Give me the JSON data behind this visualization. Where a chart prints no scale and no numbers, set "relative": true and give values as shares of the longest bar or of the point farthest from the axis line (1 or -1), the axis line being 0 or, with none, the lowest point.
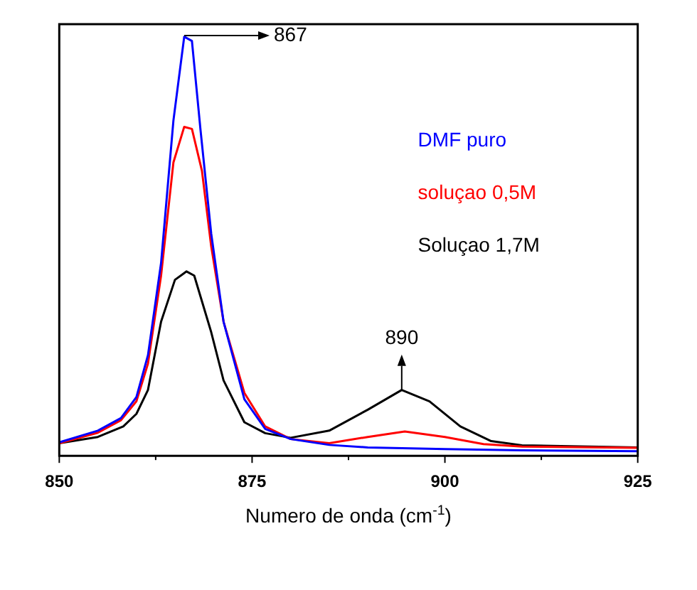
{
  "chart_data": {
    "type": "line",
    "relative": true,
    "xlabel": "Numero de onda (cm$^{-1}$)",
    "xlim": [
      850,
      925
    ],
    "xticks": [
      850,
      {
        "value": 862.5,
        "label": null
      },
      875,
      {
        "value": 887.5,
        "label": null
      },
      900,
      {
        "value": 912.5,
        "label": null
      },
      925
    ],
    "legend": "right",
    "grid": false,
    "marker": "none",
    "line_style": "solid",
    "annotations": [
      "867",
      {
        "text": "890",
        "x": 894.4,
        "y": 0.157
      }
    ],
    "series": [
      {
        "name": "DMF puro",
        "color": "#0000ff",
        "x": [
          850,
          855,
          858,
          860,
          861.5,
          863.2,
          864.8,
          866.2,
          867.2,
          868.3,
          869.7,
          871.3,
          874,
          876.7,
          880,
          885,
          890,
          900,
          910,
          925
        ],
        "values": [
          0.032,
          0.06,
          0.09,
          0.14,
          0.24,
          0.46,
          0.8,
          1.0,
          0.99,
          0.78,
          0.53,
          0.32,
          0.135,
          0.064,
          0.04,
          0.026,
          0.02,
          0.016,
          0.013,
          0.011
        ]
      },
      {
        "name": "soluçao 0,5M",
        "color": "#ff0000",
        "x": [
          850,
          855,
          858,
          860,
          861.5,
          863.2,
          864.8,
          866.2,
          867.2,
          868.5,
          869.7,
          871.3,
          874,
          876.7,
          880,
          885,
          890,
          894.8,
          900,
          905,
          910,
          925
        ],
        "values": [
          0.03,
          0.055,
          0.085,
          0.13,
          0.22,
          0.43,
          0.7,
          0.785,
          0.78,
          0.68,
          0.5,
          0.32,
          0.15,
          0.07,
          0.04,
          0.03,
          0.045,
          0.058,
          0.045,
          0.028,
          0.022,
          0.019
        ]
      },
      {
        "name": "Soluçao 1,7M",
        "color": "#000000",
        "x": [
          850,
          855,
          858.3,
          860,
          861.5,
          863.2,
          865,
          866.5,
          867.5,
          869.7,
          871.3,
          874,
          876.7,
          880,
          885,
          890,
          894.4,
          898,
          902,
          906,
          910,
          925
        ],
        "values": [
          0.03,
          0.045,
          0.07,
          0.1,
          0.157,
          0.32,
          0.42,
          0.44,
          0.43,
          0.295,
          0.18,
          0.08,
          0.054,
          0.043,
          0.06,
          0.11,
          0.157,
          0.13,
          0.07,
          0.035,
          0.025,
          0.02
        ]
      }
    ]
  }
}
